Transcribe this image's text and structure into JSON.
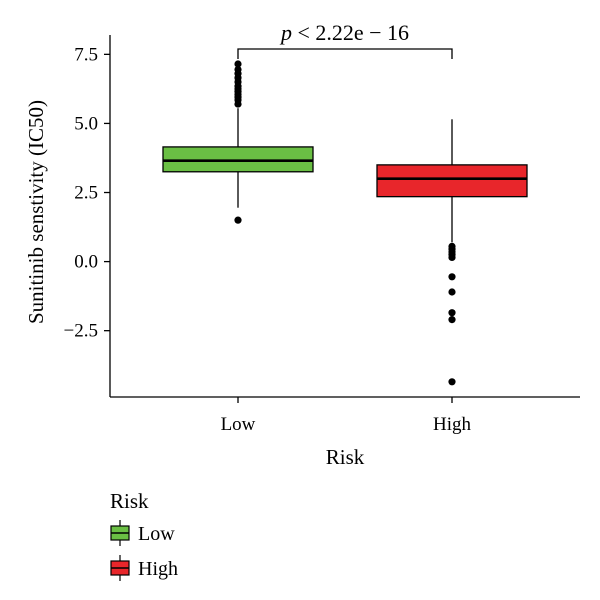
{
  "chart_data": {
    "type": "boxplot",
    "xlabel": "Risk",
    "ylabel": "Sunitinib senstivity (IC50)",
    "ylim": [
      -4.9,
      8.2
    ],
    "yticks": [
      7.5,
      5.0,
      2.5,
      0.0,
      -2.5
    ],
    "ytick_labels": [
      "7.5",
      "5.0",
      "2.5",
      "0.0",
      "−2.5"
    ],
    "categories": [
      "Low",
      "High"
    ],
    "series": [
      {
        "name": "Low",
        "color": "#6abf44",
        "q1": 3.25,
        "median": 3.65,
        "q3": 4.15,
        "whisker_low": 1.95,
        "whisker_high": 5.55,
        "outliers": [
          1.5,
          5.7,
          5.85,
          5.95,
          6.05,
          6.15,
          6.25,
          6.35,
          6.5,
          6.65,
          6.8,
          6.95,
          7.15
        ]
      },
      {
        "name": "High",
        "color": "#e8262b",
        "q1": 2.35,
        "median": 3.0,
        "q3": 3.5,
        "whisker_low": 0.7,
        "whisker_high": 5.15,
        "outliers": [
          0.55,
          0.45,
          0.35,
          0.25,
          0.15,
          -0.55,
          -1.1,
          -1.85,
          -2.1,
          -4.35
        ]
      }
    ],
    "annotation": {
      "p_symbol": "p",
      "p_text": " < 2.22e − 16"
    },
    "legend": {
      "title": "Risk",
      "position": "bottom-left",
      "items": [
        "Low",
        "High"
      ]
    },
    "grid": false
  }
}
